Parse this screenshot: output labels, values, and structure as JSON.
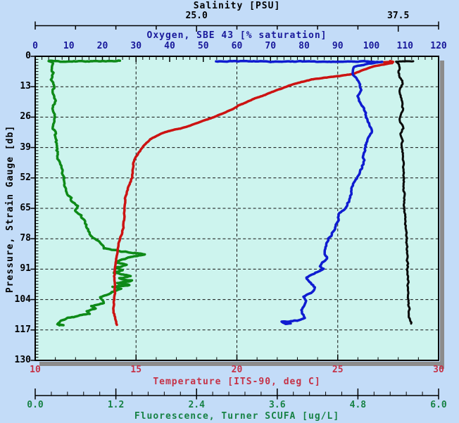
{
  "figure": {
    "background": "#C3DCF8",
    "plot_background": "#CDF4EE",
    "shadow_color": "#8C8C8C",
    "grid_color": "#111111",
    "border_color": "#000000"
  },
  "axes": {
    "salinity": {
      "title": "Salinity [PSU]",
      "color": "#000000",
      "range": [
        15,
        40
      ],
      "tick_step": 2.5,
      "labels": [
        {
          "text": "25.0",
          "value": 25.0
        },
        {
          "text": "37.5",
          "value": 37.5
        }
      ]
    },
    "oxygen": {
      "title": "Oxygen, SBE 43 [% saturation]",
      "color": "#19199B",
      "range": [
        0,
        120
      ],
      "major_step": 10,
      "minor_step": 2,
      "labels": [
        "0",
        "10",
        "20",
        "30",
        "40",
        "50",
        "60",
        "70",
        "80",
        "90",
        "100",
        "110",
        "120"
      ]
    },
    "pressure": {
      "title": "Pressure, Strain Gauge [db]",
      "color": "#000000",
      "range": [
        0,
        130
      ],
      "major_step": 13,
      "minor_step": 1.3,
      "labels": [
        "0",
        "13",
        "26",
        "39",
        "52",
        "65",
        "78",
        "91",
        "104",
        "117",
        "130"
      ]
    },
    "temperature": {
      "title": "Temperature [ITS-90, deg C]",
      "color": "#C53247",
      "range": [
        10,
        30
      ],
      "major_step": 5,
      "minor_step": 1,
      "gridline_values": [
        15,
        20,
        25
      ],
      "labels": [
        "10",
        "15",
        "20",
        "25",
        "30"
      ]
    },
    "fluorescence": {
      "title": "Fluorescence, Turner SCUFA [ug/L]",
      "color": "#178245",
      "range": [
        0,
        6
      ],
      "major_step": 1.2,
      "minor_step": 0.24,
      "labels": [
        "0.0",
        "1.2",
        "2.4",
        "3.6",
        "4.8",
        "6.0"
      ]
    }
  },
  "chart_data": {
    "type": "line",
    "orientation": "vertical-depth-profile",
    "y_axis": "pressure",
    "y_range": [
      0,
      130
    ],
    "grid": true,
    "series": [
      {
        "name": "Fluorescence, Turner SCUFA [ug/L]",
        "x_axis": "fluorescence",
        "color": "#0E8A18",
        "width": 3.5,
        "jitter": 1.5,
        "points": [
          [
            1.26,
            2.0
          ],
          [
            1.05,
            2.1
          ],
          [
            0.6,
            2.2
          ],
          [
            0.2,
            2.1
          ],
          [
            0.26,
            2.6
          ],
          [
            0.24,
            4
          ],
          [
            0.27,
            7
          ],
          [
            0.25,
            10
          ],
          [
            0.27,
            13
          ],
          [
            0.25,
            16
          ],
          [
            0.28,
            19
          ],
          [
            0.26,
            23
          ],
          [
            0.28,
            26
          ],
          [
            0.27,
            29
          ],
          [
            0.3,
            33
          ],
          [
            0.3,
            36
          ],
          [
            0.31,
            39
          ],
          [
            0.33,
            42
          ],
          [
            0.35,
            45
          ],
          [
            0.38,
            48
          ],
          [
            0.42,
            52
          ],
          [
            0.44,
            55
          ],
          [
            0.47,
            57
          ],
          [
            0.52,
            60
          ],
          [
            0.55,
            62
          ],
          [
            0.63,
            64
          ],
          [
            0.58,
            66
          ],
          [
            0.68,
            68
          ],
          [
            0.72,
            70
          ],
          [
            0.75,
            72
          ],
          [
            0.78,
            74
          ],
          [
            0.8,
            76
          ],
          [
            0.88,
            78
          ],
          [
            0.97,
            80
          ],
          [
            1.02,
            82
          ],
          [
            1.3,
            83.5
          ],
          [
            1.48,
            84
          ],
          [
            1.63,
            84.6
          ],
          [
            1.52,
            85.3
          ],
          [
            1.38,
            86
          ],
          [
            1.2,
            88
          ],
          [
            1.36,
            89
          ],
          [
            1.19,
            90.5
          ],
          [
            1.3,
            91.5
          ],
          [
            1.17,
            92.5
          ],
          [
            1.42,
            94
          ],
          [
            1.25,
            95
          ],
          [
            1.44,
            96
          ],
          [
            1.22,
            97
          ],
          [
            1.4,
            97.8
          ],
          [
            1.15,
            98.6
          ],
          [
            1.28,
            99.5
          ],
          [
            1.12,
            100.8
          ],
          [
            1.1,
            101.5
          ],
          [
            0.97,
            103
          ],
          [
            1.0,
            104.2
          ],
          [
            1.02,
            105.5
          ],
          [
            0.84,
            106.8
          ],
          [
            0.9,
            107.8
          ],
          [
            0.76,
            109
          ],
          [
            0.81,
            110
          ],
          [
            0.62,
            111
          ],
          [
            0.48,
            112
          ],
          [
            0.4,
            113
          ],
          [
            0.36,
            113.8
          ],
          [
            0.33,
            114.6
          ],
          [
            0.42,
            114.9
          ],
          [
            0.36,
            115
          ]
        ]
      },
      {
        "name": "Temperature [ITS-90, deg C]",
        "x_axis": "temperature",
        "color": "#CC1312",
        "width": 3.5,
        "jitter": 0.7,
        "points": [
          [
            27.6,
            2.1
          ],
          [
            27.75,
            2.4
          ],
          [
            27.3,
            2.6
          ],
          [
            27.7,
            2.9
          ],
          [
            26.8,
            4.2
          ],
          [
            26.2,
            6
          ],
          [
            25.8,
            7.5
          ],
          [
            25.1,
            8.4
          ],
          [
            24.3,
            9.2
          ],
          [
            23.7,
            9.9
          ],
          [
            23.2,
            11
          ],
          [
            22.6,
            12.5
          ],
          [
            22.3,
            13.5
          ],
          [
            21.8,
            15
          ],
          [
            21.4,
            16.5
          ],
          [
            20.9,
            18
          ],
          [
            20.5,
            19.5
          ],
          [
            20.1,
            21
          ],
          [
            19.8,
            22.5
          ],
          [
            19.3,
            24.5
          ],
          [
            18.7,
            26.5
          ],
          [
            18.2,
            28
          ],
          [
            17.7,
            29.5
          ],
          [
            17.2,
            30.8
          ],
          [
            16.6,
            32
          ],
          [
            16.3,
            32.8
          ],
          [
            16.0,
            34
          ],
          [
            15.7,
            35.5
          ],
          [
            15.4,
            38
          ],
          [
            15.2,
            40.5
          ],
          [
            15.0,
            43
          ],
          [
            14.9,
            45.5
          ],
          [
            14.85,
            48
          ],
          [
            14.8,
            52
          ],
          [
            14.7,
            54
          ],
          [
            14.6,
            56.5
          ],
          [
            14.5,
            59.5
          ],
          [
            14.45,
            62
          ],
          [
            14.4,
            65
          ],
          [
            14.4,
            70
          ],
          [
            14.35,
            74
          ],
          [
            14.2,
            78
          ],
          [
            14.1,
            82
          ],
          [
            14.0,
            86
          ],
          [
            13.95,
            90
          ],
          [
            13.92,
            94
          ],
          [
            13.95,
            98
          ],
          [
            13.93,
            102
          ],
          [
            13.9,
            106
          ],
          [
            13.9,
            109
          ],
          [
            13.95,
            111.5
          ],
          [
            14.0,
            113.5
          ],
          [
            14.05,
            114.8
          ]
        ]
      },
      {
        "name": "Oxygen, SBE 43 [% saturation]",
        "x_axis": "oxygen",
        "color": "#0F1CD0",
        "width": 3.5,
        "jitter": 1.2,
        "points": [
          [
            53.8,
            2.2
          ],
          [
            60,
            2.1
          ],
          [
            70,
            2.3
          ],
          [
            80,
            2.2
          ],
          [
            90,
            2.4
          ],
          [
            97,
            2.2
          ],
          [
            103.2,
            2.4
          ],
          [
            99,
            3.2
          ],
          [
            95,
            4.5
          ],
          [
            94.3,
            6
          ],
          [
            94.8,
            8
          ],
          [
            95.9,
            10.5
          ],
          [
            96.5,
            12.5
          ],
          [
            96.8,
            14.4
          ],
          [
            95.9,
            17
          ],
          [
            96.5,
            19
          ],
          [
            97.8,
            21.6
          ],
          [
            98.4,
            25.5
          ],
          [
            99.2,
            28
          ],
          [
            99.9,
            30.6
          ],
          [
            100.1,
            32
          ],
          [
            99.5,
            34.5
          ],
          [
            98.7,
            37
          ],
          [
            98.1,
            39
          ],
          [
            97.9,
            42
          ],
          [
            97.8,
            45
          ],
          [
            97.0,
            48
          ],
          [
            95.7,
            51.6
          ],
          [
            94.6,
            54
          ],
          [
            94.2,
            56.5
          ],
          [
            93.8,
            59
          ],
          [
            93.6,
            61
          ],
          [
            92.5,
            64
          ],
          [
            91.5,
            65.8
          ],
          [
            90.7,
            67
          ],
          [
            90.2,
            69.5
          ],
          [
            89.6,
            72
          ],
          [
            88.6,
            75
          ],
          [
            87.3,
            78
          ],
          [
            86.5,
            81
          ],
          [
            85.9,
            84
          ],
          [
            86.9,
            86.5
          ],
          [
            85.0,
            88.5
          ],
          [
            84.8,
            89.8
          ],
          [
            85.8,
            91
          ],
          [
            83.5,
            92.5
          ],
          [
            80.6,
            94.6
          ],
          [
            81.8,
            96.5
          ],
          [
            83.1,
            98.8
          ],
          [
            82.6,
            100.5
          ],
          [
            80.0,
            102.8
          ],
          [
            80.8,
            104.5
          ],
          [
            80.2,
            106
          ],
          [
            78.9,
            108.5
          ],
          [
            79.5,
            110
          ],
          [
            80.2,
            111.8
          ],
          [
            78.0,
            113
          ],
          [
            73.3,
            113.6
          ],
          [
            74.5,
            114.4
          ],
          [
            76.0,
            114.2
          ]
        ]
      },
      {
        "name": "Salinity [PSU]",
        "x_axis": "salinity",
        "color": "#0A0A0A",
        "width": 3,
        "jitter": 0.9,
        "points": [
          [
            38.43,
            2.1
          ],
          [
            38.0,
            2.2
          ],
          [
            37.6,
            2.1
          ],
          [
            37.35,
            2.3
          ],
          [
            37.55,
            3.5
          ],
          [
            37.6,
            5
          ],
          [
            37.5,
            7
          ],
          [
            37.55,
            8.5
          ],
          [
            37.7,
            10
          ],
          [
            37.8,
            11.5
          ],
          [
            37.65,
            13.5
          ],
          [
            37.6,
            15.6
          ],
          [
            37.68,
            18
          ],
          [
            37.72,
            21
          ],
          [
            37.8,
            23
          ],
          [
            37.65,
            25.5
          ],
          [
            37.6,
            27.6
          ],
          [
            37.75,
            29.5
          ],
          [
            37.8,
            30.8
          ],
          [
            37.63,
            33
          ],
          [
            37.72,
            34.5
          ],
          [
            37.8,
            36.2
          ],
          [
            37.7,
            38
          ],
          [
            37.72,
            39.6
          ],
          [
            37.78,
            42
          ],
          [
            37.8,
            45.6
          ],
          [
            37.82,
            48.5
          ],
          [
            37.83,
            51.6
          ],
          [
            37.85,
            55
          ],
          [
            37.86,
            57.6
          ],
          [
            37.9,
            60
          ],
          [
            37.87,
            62
          ],
          [
            37.85,
            64.5
          ],
          [
            37.92,
            67
          ],
          [
            37.95,
            70
          ],
          [
            37.98,
            73
          ],
          [
            38.0,
            76
          ],
          [
            38.02,
            79
          ],
          [
            38.04,
            82
          ],
          [
            38.06,
            86
          ],
          [
            38.08,
            90
          ],
          [
            38.09,
            94
          ],
          [
            38.1,
            98
          ],
          [
            38.1,
            102
          ],
          [
            38.13,
            105
          ],
          [
            38.17,
            108
          ],
          [
            38.2,
            111
          ],
          [
            38.22,
            113.3
          ],
          [
            38.3,
            114.3
          ]
        ]
      }
    ]
  }
}
